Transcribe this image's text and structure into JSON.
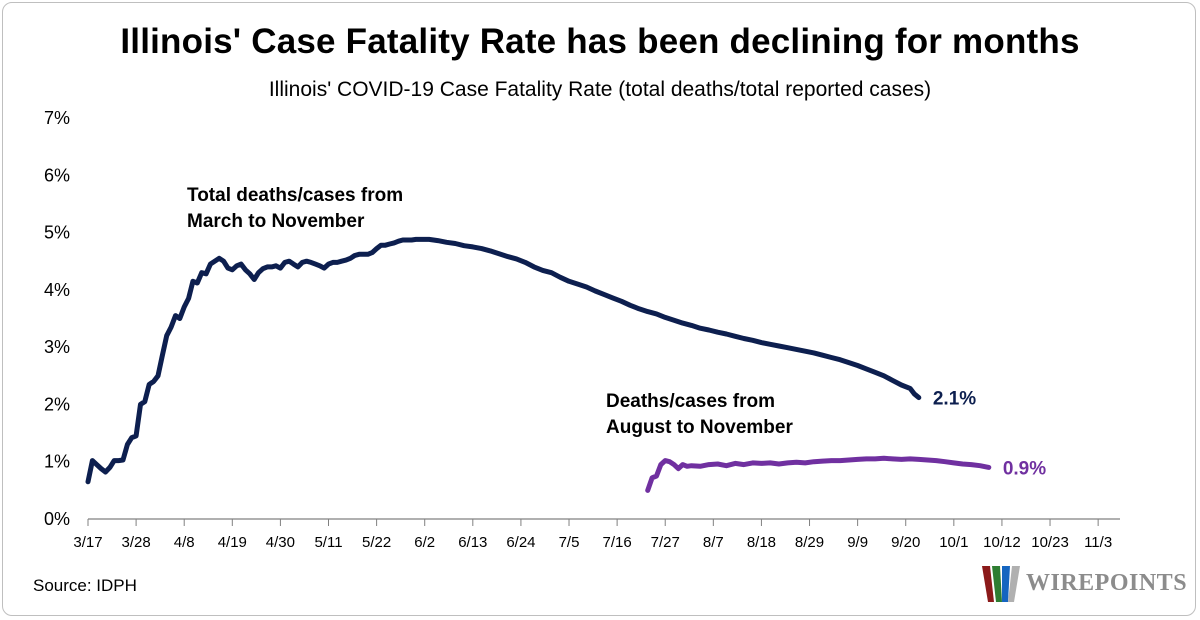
{
  "title": "Illinois' Case Fatality Rate has been declining for months",
  "source": "Source: IDPH",
  "logo": {
    "text": "WIREPOINTS"
  },
  "chart_data": {
    "type": "line",
    "title": "Illinois' Case Fatality Rate has been declining for months",
    "subtitle": "Illinois' COVID-19 Case Fatality Rate (total deaths/total reported cases)",
    "xlabel": "",
    "ylabel": "",
    "ylim": [
      0,
      7
    ],
    "yticks": [
      0,
      1,
      2,
      3,
      4,
      5,
      6,
      7
    ],
    "ytick_labels": [
      "0%",
      "1%",
      "2%",
      "3%",
      "4%",
      "5%",
      "6%",
      "7%"
    ],
    "x_domain_days": [
      0,
      236
    ],
    "xticks_day": [
      0,
      11,
      22,
      33,
      44,
      55,
      66,
      77,
      88,
      99,
      110,
      121,
      132,
      143,
      154,
      165,
      176,
      187,
      198,
      209,
      220,
      231
    ],
    "xtick_labels": [
      "3/17",
      "3/28",
      "4/8",
      "4/19",
      "4/30",
      "5/11",
      "5/22",
      "6/2",
      "6/13",
      "6/24",
      "7/5",
      "7/16",
      "7/27",
      "8/7",
      "8/18",
      "8/29",
      "9/9",
      "9/20",
      "10/1",
      "10/12",
      "10/23",
      "11/3"
    ],
    "grid": false,
    "series": [
      {
        "name": "Total deaths/cases from March to November",
        "annotation_lines": [
          "Total deaths/cases from",
          "March to November"
        ],
        "color": "#0d1f4f",
        "end_label": "2.1%",
        "points": [
          [
            0,
            0.65
          ],
          [
            1,
            1.02
          ],
          [
            2,
            0.95
          ],
          [
            3,
            0.88
          ],
          [
            4,
            0.82
          ],
          [
            5,
            0.9
          ],
          [
            6,
            1.02
          ],
          [
            7,
            1.02
          ],
          [
            8,
            1.03
          ],
          [
            9,
            1.3
          ],
          [
            10,
            1.42
          ],
          [
            11,
            1.45
          ],
          [
            12,
            2.0
          ],
          [
            13,
            2.05
          ],
          [
            14,
            2.35
          ],
          [
            15,
            2.4
          ],
          [
            16,
            2.5
          ],
          [
            17,
            2.85
          ],
          [
            18,
            3.2
          ],
          [
            19,
            3.35
          ],
          [
            20,
            3.55
          ],
          [
            21,
            3.5
          ],
          [
            22,
            3.7
          ],
          [
            23,
            3.85
          ],
          [
            24,
            4.15
          ],
          [
            25,
            4.12
          ],
          [
            26,
            4.3
          ],
          [
            27,
            4.28
          ],
          [
            28,
            4.45
          ],
          [
            29,
            4.5
          ],
          [
            30,
            4.55
          ],
          [
            31,
            4.5
          ],
          [
            32,
            4.38
          ],
          [
            33,
            4.35
          ],
          [
            34,
            4.42
          ],
          [
            35,
            4.45
          ],
          [
            36,
            4.35
          ],
          [
            37,
            4.28
          ],
          [
            38,
            4.18
          ],
          [
            39,
            4.3
          ],
          [
            40,
            4.37
          ],
          [
            41,
            4.4
          ],
          [
            42,
            4.4
          ],
          [
            43,
            4.42
          ],
          [
            44,
            4.38
          ],
          [
            45,
            4.48
          ],
          [
            46,
            4.5
          ],
          [
            47,
            4.45
          ],
          [
            48,
            4.4
          ],
          [
            49,
            4.48
          ],
          [
            50,
            4.5
          ],
          [
            51,
            4.48
          ],
          [
            52,
            4.45
          ],
          [
            53,
            4.42
          ],
          [
            54,
            4.38
          ],
          [
            55,
            4.45
          ],
          [
            56,
            4.48
          ],
          [
            57,
            4.48
          ],
          [
            58,
            4.5
          ],
          [
            59,
            4.52
          ],
          [
            60,
            4.55
          ],
          [
            61,
            4.6
          ],
          [
            62,
            4.62
          ],
          [
            63,
            4.62
          ],
          [
            64,
            4.62
          ],
          [
            65,
            4.65
          ],
          [
            66,
            4.72
          ],
          [
            67,
            4.78
          ],
          [
            68,
            4.78
          ],
          [
            69,
            4.8
          ],
          [
            70,
            4.82
          ],
          [
            71,
            4.85
          ],
          [
            72,
            4.87
          ],
          [
            73,
            4.87
          ],
          [
            74,
            4.87
          ],
          [
            75,
            4.88
          ],
          [
            76,
            4.88
          ],
          [
            77,
            4.88
          ],
          [
            78,
            4.88
          ],
          [
            79,
            4.87
          ],
          [
            80,
            4.86
          ],
          [
            82,
            4.83
          ],
          [
            84,
            4.81
          ],
          [
            86,
            4.77
          ],
          [
            88,
            4.75
          ],
          [
            90,
            4.72
          ],
          [
            92,
            4.68
          ],
          [
            94,
            4.63
          ],
          [
            96,
            4.58
          ],
          [
            98,
            4.54
          ],
          [
            100,
            4.48
          ],
          [
            102,
            4.4
          ],
          [
            104,
            4.34
          ],
          [
            106,
            4.3
          ],
          [
            108,
            4.22
          ],
          [
            110,
            4.15
          ],
          [
            112,
            4.1
          ],
          [
            114,
            4.05
          ],
          [
            116,
            3.98
          ],
          [
            118,
            3.92
          ],
          [
            120,
            3.86
          ],
          [
            122,
            3.8
          ],
          [
            124,
            3.73
          ],
          [
            126,
            3.67
          ],
          [
            128,
            3.62
          ],
          [
            130,
            3.58
          ],
          [
            132,
            3.52
          ],
          [
            134,
            3.47
          ],
          [
            136,
            3.42
          ],
          [
            138,
            3.38
          ],
          [
            140,
            3.33
          ],
          [
            142,
            3.3
          ],
          [
            144,
            3.26
          ],
          [
            146,
            3.23
          ],
          [
            148,
            3.19
          ],
          [
            150,
            3.15
          ],
          [
            152,
            3.12
          ],
          [
            154,
            3.08
          ],
          [
            156,
            3.05
          ],
          [
            158,
            3.02
          ],
          [
            160,
            2.99
          ],
          [
            162,
            2.96
          ],
          [
            164,
            2.93
          ],
          [
            166,
            2.9
          ],
          [
            168,
            2.86
          ],
          [
            170,
            2.82
          ],
          [
            172,
            2.78
          ],
          [
            174,
            2.73
          ],
          [
            176,
            2.68
          ],
          [
            178,
            2.62
          ],
          [
            180,
            2.56
          ],
          [
            182,
            2.5
          ],
          [
            184,
            2.42
          ],
          [
            186,
            2.34
          ],
          [
            188,
            2.28
          ],
          [
            189,
            2.18
          ],
          [
            190,
            2.12
          ]
        ]
      },
      {
        "name": "Deaths/cases from August to November",
        "annotation_lines": [
          "Deaths/cases from",
          "August to November"
        ],
        "color": "#7030a0",
        "end_label": "0.9%",
        "points": [
          [
            128,
            0.5
          ],
          [
            129,
            0.72
          ],
          [
            130,
            0.75
          ],
          [
            131,
            0.95
          ],
          [
            132,
            1.02
          ],
          [
            133,
            1.0
          ],
          [
            134,
            0.95
          ],
          [
            135,
            0.88
          ],
          [
            136,
            0.95
          ],
          [
            137,
            0.92
          ],
          [
            138,
            0.93
          ],
          [
            140,
            0.92
          ],
          [
            142,
            0.95
          ],
          [
            144,
            0.96
          ],
          [
            146,
            0.93
          ],
          [
            148,
            0.97
          ],
          [
            150,
            0.95
          ],
          [
            152,
            0.98
          ],
          [
            154,
            0.97
          ],
          [
            156,
            0.98
          ],
          [
            158,
            0.96
          ],
          [
            160,
            0.98
          ],
          [
            162,
            0.99
          ],
          [
            164,
            0.98
          ],
          [
            166,
            1.0
          ],
          [
            168,
            1.01
          ],
          [
            170,
            1.02
          ],
          [
            172,
            1.02
          ],
          [
            174,
            1.03
          ],
          [
            176,
            1.04
          ],
          [
            178,
            1.05
          ],
          [
            180,
            1.05
          ],
          [
            182,
            1.06
          ],
          [
            184,
            1.05
          ],
          [
            186,
            1.04
          ],
          [
            188,
            1.05
          ],
          [
            190,
            1.04
          ],
          [
            192,
            1.03
          ],
          [
            194,
            1.02
          ],
          [
            196,
            1.0
          ],
          [
            198,
            0.98
          ],
          [
            200,
            0.96
          ],
          [
            202,
            0.95
          ],
          [
            204,
            0.93
          ],
          [
            206,
            0.9
          ]
        ]
      }
    ]
  }
}
